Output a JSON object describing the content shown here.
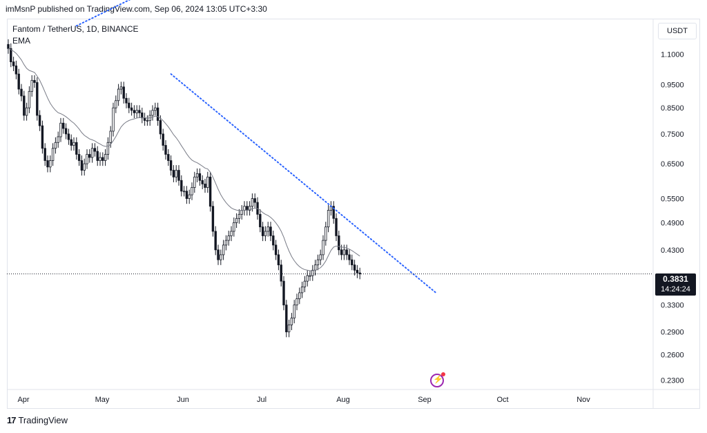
{
  "header": {
    "published_text": "imMsnP published on TradingView.com, Sep 06, 2024 13:05 UTC+3:30"
  },
  "legend": {
    "symbol_line": "Fantom / TetherUS, 1D, BINANCE",
    "indicator": "EMA"
  },
  "currency_button": "USDT",
  "price_badge": {
    "price": "0.3831",
    "countdown": "14:24:24"
  },
  "footer": {
    "brand": "TradingView"
  },
  "colors": {
    "up": "#131722",
    "down": "#131722",
    "ema": "#787b86",
    "trendline": "#2962ff",
    "grid_border": "#e0e3eb"
  },
  "icons": [
    "tradingview-logo-icon",
    "lightning-event-icon"
  ],
  "chart_data": {
    "type": "candlestick",
    "title": "Fantom / TetherUS, 1D, BINANCE",
    "scale": "log",
    "y_ticks": [
      "1.1000",
      "0.9500",
      "0.8500",
      "0.7500",
      "0.6500",
      "0.5500",
      "0.4900",
      "0.4300",
      "0.3300",
      "0.2900",
      "0.2600",
      "0.2300"
    ],
    "x_ticks": [
      "Apr",
      "May",
      "Jun",
      "Jul",
      "Aug",
      "Sep",
      "Oct",
      "Nov"
    ],
    "last_price": 0.3831,
    "ylim": [
      0.22,
      1.3
    ],
    "close_series": [
      1.13,
      1.06,
      1.04,
      1.0,
      0.93,
      0.9,
      0.82,
      0.85,
      0.92,
      0.97,
      0.96,
      0.82,
      0.78,
      0.7,
      0.66,
      0.64,
      0.66,
      0.7,
      0.72,
      0.74,
      0.79,
      0.77,
      0.75,
      0.73,
      0.71,
      0.72,
      0.68,
      0.66,
      0.63,
      0.65,
      0.68,
      0.67,
      0.7,
      0.69,
      0.66,
      0.67,
      0.66,
      0.68,
      0.72,
      0.76,
      0.85,
      0.88,
      0.93,
      0.94,
      0.89,
      0.87,
      0.85,
      0.84,
      0.83,
      0.84,
      0.83,
      0.81,
      0.8,
      0.8,
      0.82,
      0.84,
      0.85,
      0.8,
      0.75,
      0.71,
      0.68,
      0.66,
      0.63,
      0.61,
      0.63,
      0.6,
      0.57,
      0.57,
      0.55,
      0.56,
      0.58,
      0.61,
      0.62,
      0.6,
      0.59,
      0.58,
      0.61,
      0.53,
      0.47,
      0.43,
      0.41,
      0.42,
      0.44,
      0.45,
      0.46,
      0.47,
      0.49,
      0.5,
      0.51,
      0.52,
      0.53,
      0.52,
      0.53,
      0.55,
      0.54,
      0.51,
      0.48,
      0.46,
      0.47,
      0.48,
      0.46,
      0.44,
      0.42,
      0.4,
      0.37,
      0.33,
      0.29,
      0.3,
      0.31,
      0.33,
      0.34,
      0.35,
      0.36,
      0.37,
      0.38,
      0.38,
      0.39,
      0.4,
      0.41,
      0.42,
      0.45,
      0.48,
      0.52,
      0.53,
      0.5,
      0.46,
      0.43,
      0.42,
      0.43,
      0.42,
      0.41,
      0.4,
      0.39,
      0.385,
      0.383
    ],
    "ema_series_note": "",
    "trendlines": [
      {
        "style": "dotted",
        "from": [
          "Mar 27",
          1.26
        ],
        "to": [
          "May 18",
          1.48
        ]
      },
      {
        "style": "dotted",
        "from": [
          "May 28",
          1.0
        ],
        "to": [
          "Sep 06",
          0.35
        ]
      }
    ]
  }
}
